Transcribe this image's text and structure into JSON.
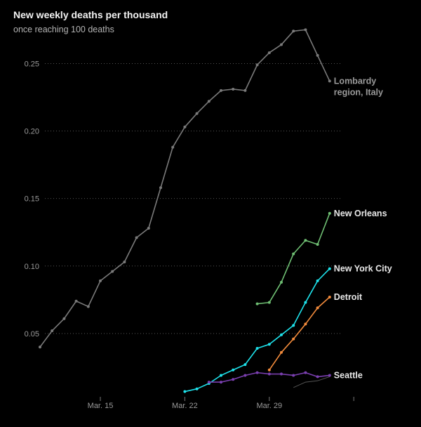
{
  "header": {
    "title": "New weekly deaths per thousand",
    "subtitle": "once reaching 100 deaths"
  },
  "chart_data": {
    "type": "line",
    "title": "New weekly deaths per thousand",
    "subtitle": "once reaching 100 deaths",
    "xlabel": "",
    "ylabel": "",
    "x_unit": "day index (Mar. 15 = 6, Mar. 22 = 13, Mar. 29 = 20)",
    "xlim": [
      1,
      26
    ],
    "ylim": [
      0,
      0.27
    ],
    "y_ticks": [
      0.05,
      0.1,
      0.15,
      0.2,
      0.25
    ],
    "y_tick_labels": [
      "0.05",
      "0.10",
      "0.15",
      "0.20",
      "0.25"
    ],
    "x_ticks": [
      6,
      13,
      20,
      27
    ],
    "x_tick_labels": [
      "Mar. 15",
      "Mar. 22",
      "Mar. 29",
      ""
    ],
    "grid": "horizontal dotted",
    "series": [
      {
        "name": "Lombardy region, Italy",
        "color": "#7a7a7a",
        "label_lines": [
          "Lombardy",
          "region, Italy"
        ],
        "x": [
          1,
          2,
          3,
          4,
          5,
          6,
          7,
          8,
          9,
          10,
          11,
          12,
          13,
          14,
          15,
          16,
          17,
          18,
          19,
          20,
          21,
          22,
          23,
          24,
          25
        ],
        "y": [
          0.04,
          0.052,
          0.061,
          0.074,
          0.07,
          0.089,
          0.096,
          0.103,
          0.121,
          0.128,
          0.158,
          0.188,
          0.203,
          0.213,
          0.222,
          0.23,
          0.231,
          0.23,
          0.249,
          0.258,
          0.264,
          0.274,
          0.275,
          0.256,
          0.237
        ]
      },
      {
        "name": "New Orleans",
        "color": "#6fbf73",
        "label_lines": [
          "New Orleans"
        ],
        "x": [
          19,
          20,
          21,
          22,
          23,
          24,
          25
        ],
        "y": [
          0.072,
          0.073,
          0.088,
          0.109,
          0.119,
          0.116,
          0.139
        ]
      },
      {
        "name": "New York City",
        "color": "#1ee1ea",
        "label_lines": [
          "New York City"
        ],
        "x": [
          13,
          14,
          15,
          16,
          17,
          18,
          19,
          20,
          21,
          22,
          23,
          24,
          25
        ],
        "y": [
          0.007,
          0.009,
          0.013,
          0.019,
          0.023,
          0.027,
          0.039,
          0.042,
          0.049,
          0.056,
          0.073,
          0.089,
          0.098
        ]
      },
      {
        "name": "Detroit",
        "color": "#f28b3c",
        "label_lines": [
          "Detroit"
        ],
        "x": [
          20,
          21,
          22,
          23,
          24,
          25
        ],
        "y": [
          0.023,
          0.036,
          0.046,
          0.057,
          0.069,
          0.077
        ]
      },
      {
        "name": "Seattle",
        "color": "#7a3fb0",
        "label_lines": [
          "Seattle"
        ],
        "x": [
          15,
          16,
          17,
          18,
          19,
          20,
          21,
          22,
          23,
          24,
          25
        ],
        "y": [
          0.014,
          0.014,
          0.016,
          0.019,
          0.021,
          0.02,
          0.02,
          0.019,
          0.021,
          0.018,
          0.019
        ]
      }
    ],
    "unlabeled_series": [
      {
        "color": "#555555",
        "x": [
          22,
          23,
          24,
          25
        ],
        "y": [
          0.01,
          0.014,
          0.015,
          0.018
        ]
      }
    ]
  }
}
